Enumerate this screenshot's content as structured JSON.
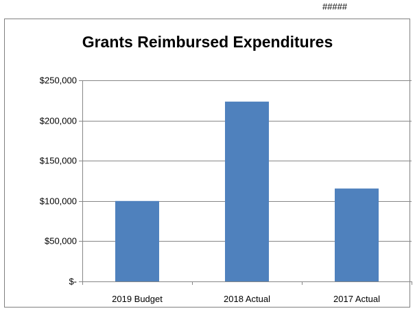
{
  "corner_text": "#####",
  "chart_data": {
    "type": "bar",
    "title": "Grants Reimbursed Expenditures",
    "categories": [
      "2019 Budget",
      "2018 Actual",
      "2017 Actual"
    ],
    "values": [
      100000,
      223500,
      115500
    ],
    "ylim": [
      0,
      250000
    ],
    "yticks": [
      0,
      50000,
      100000,
      150000,
      200000,
      250000
    ],
    "ytick_labels": [
      "$-",
      "$50,000",
      "$100,000",
      "$150,000",
      "$200,000",
      "$250,000"
    ],
    "xlabel": "",
    "ylabel": "",
    "grid": true,
    "bar_color": "#4f81bd",
    "grid_color": "#868686"
  }
}
